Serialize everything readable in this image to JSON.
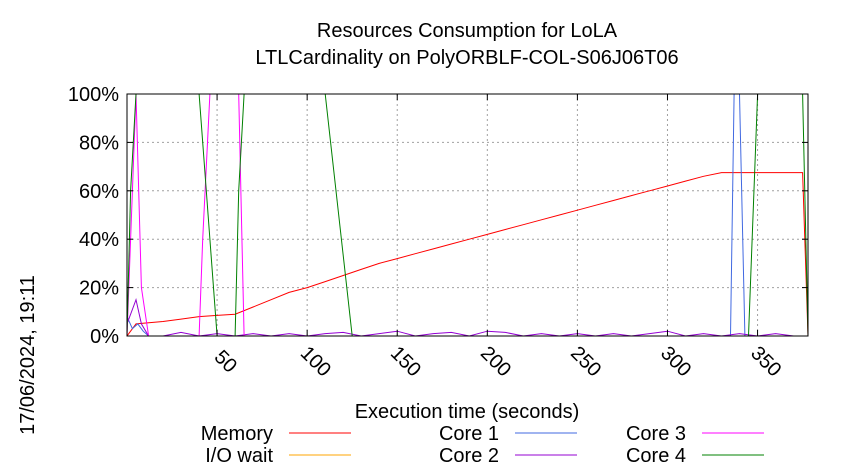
{
  "chart_data": {
    "type": "line",
    "title": "Resources Consumption for LoLA",
    "subtitle": "LTLCardinality on PolyORBLF-COL-S06J06T06",
    "xlabel": "Execution time (seconds)",
    "ylabel": "",
    "timestamp": "17/06/2024, 19:11",
    "xlim": [
      0,
      378
    ],
    "ylim": [
      0,
      100
    ],
    "x_ticks": [
      {
        "label": "50",
        "value": 50
      },
      {
        "label": "100",
        "value": 100
      },
      {
        "label": "150",
        "value": 150
      },
      {
        "label": "200",
        "value": 200
      },
      {
        "label": "250",
        "value": 250
      },
      {
        "label": "300",
        "value": 300
      },
      {
        "label": "350",
        "value": 350
      }
    ],
    "y_ticks": [
      {
        "label": "0%",
        "value": 0
      },
      {
        "label": "20%",
        "value": 20
      },
      {
        "label": "40%",
        "value": 40
      },
      {
        "label": "60%",
        "value": 60
      },
      {
        "label": "80%",
        "value": 80
      },
      {
        "label": "100%",
        "value": 100
      }
    ],
    "grid": true,
    "legend": "bottom",
    "series": [
      {
        "name": "Memory",
        "color": "#ff0000",
        "x": [
          0,
          5,
          20,
          30,
          40,
          50,
          60,
          70,
          80,
          90,
          100,
          110,
          120,
          130,
          140,
          150,
          160,
          170,
          180,
          190,
          200,
          210,
          220,
          230,
          240,
          250,
          260,
          270,
          280,
          290,
          300,
          310,
          320,
          330,
          340,
          350,
          360,
          370,
          375,
          378
        ],
        "y": [
          0,
          5,
          6,
          7,
          8,
          8.5,
          9,
          12,
          15,
          18,
          20,
          22.5,
          25,
          27.5,
          30,
          32,
          34,
          36,
          38,
          40,
          42,
          44,
          46,
          48,
          50,
          52,
          54,
          56,
          58,
          60,
          62,
          64,
          66,
          67.5,
          67.5,
          67.5,
          67.5,
          67.5,
          67.5,
          0
        ]
      },
      {
        "name": "I/O wait",
        "color": "#ffa500",
        "x": [
          0,
          378
        ],
        "y": [
          0,
          0
        ]
      },
      {
        "name": "Core 1",
        "color": "#4169e1",
        "x": [
          0,
          3,
          6,
          9,
          12,
          30,
          60,
          100,
          200,
          300,
          335,
          337,
          340,
          343,
          360,
          378
        ],
        "y": [
          8,
          3,
          5,
          2,
          0,
          0,
          0,
          0,
          0,
          0,
          0,
          100,
          100,
          0,
          0,
          0
        ]
      },
      {
        "name": "Core 2",
        "color": "#9400d3",
        "x": [
          0,
          5,
          8,
          12,
          20,
          30,
          40,
          50,
          60,
          70,
          80,
          90,
          100,
          110,
          120,
          130,
          140,
          150,
          160,
          170,
          180,
          190,
          200,
          210,
          220,
          230,
          240,
          250,
          260,
          270,
          280,
          290,
          300,
          310,
          320,
          330,
          340,
          350,
          360,
          370,
          378
        ],
        "y": [
          5,
          15,
          5,
          0,
          0,
          1.5,
          0,
          1,
          0,
          1,
          0,
          1,
          0,
          1,
          1.5,
          0,
          1,
          2,
          0,
          1,
          1.5,
          0,
          2,
          1.5,
          0,
          1,
          0,
          1,
          0,
          1,
          0,
          1,
          2,
          0,
          1,
          0,
          1,
          0,
          1,
          0,
          0
        ]
      },
      {
        "name": "Core 3",
        "color": "#ff00ff",
        "x": [
          0,
          3,
          5,
          8,
          12,
          30,
          40,
          42,
          46,
          55,
          62,
          65,
          80,
          378
        ],
        "y": [
          0,
          60,
          100,
          20,
          0,
          0,
          0,
          40,
          100,
          100,
          100,
          0,
          0,
          0
        ]
      },
      {
        "name": "Core 4",
        "color": "#008000",
        "x": [
          0,
          2,
          5,
          40,
          50,
          55,
          60,
          62,
          65,
          70,
          110,
          125,
          130,
          340,
          345,
          350,
          370,
          375,
          378
        ],
        "y": [
          0,
          60,
          100,
          100,
          0,
          0,
          0,
          60,
          100,
          100,
          100,
          0,
          0,
          0,
          0,
          100,
          100,
          100,
          0
        ]
      }
    ]
  }
}
